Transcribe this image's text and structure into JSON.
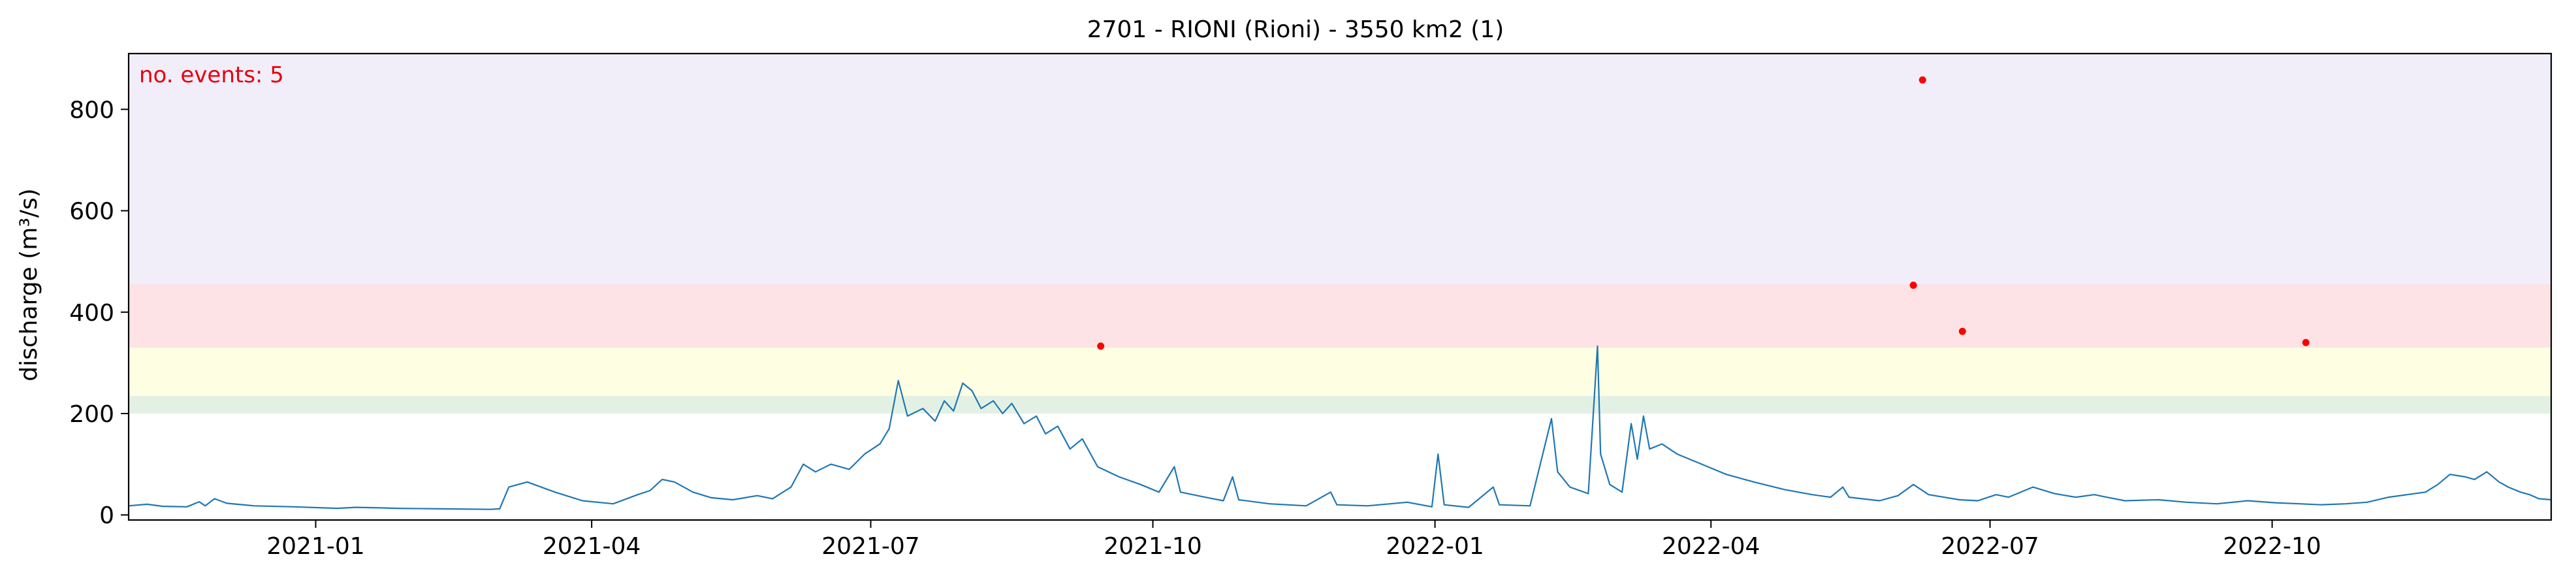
{
  "chart_data": {
    "type": "line",
    "title": "2701 - RIONI (Rioni) - 3550 km2 (1)",
    "xlabel": "",
    "ylabel": "discharge (m³/s)",
    "annotation": "no. events: 5",
    "xlim": [
      "2020-11-01",
      "2022-12-31"
    ],
    "ylim": [
      -10,
      910
    ],
    "x_ticks": [
      {
        "date": "2021-01-01",
        "label": "2021-01"
      },
      {
        "date": "2021-04-01",
        "label": "2021-04"
      },
      {
        "date": "2021-07-01",
        "label": "2021-07"
      },
      {
        "date": "2021-10-01",
        "label": "2021-10"
      },
      {
        "date": "2022-01-01",
        "label": "2022-01"
      },
      {
        "date": "2022-04-01",
        "label": "2022-04"
      },
      {
        "date": "2022-07-01",
        "label": "2022-07"
      },
      {
        "date": "2022-10-01",
        "label": "2022-10"
      }
    ],
    "y_ticks": [
      0,
      200,
      400,
      600,
      800
    ],
    "grid": false,
    "threshold_bands": [
      {
        "from": 200,
        "to": 235,
        "color": "#e3f1e4"
      },
      {
        "from": 235,
        "to": 330,
        "color": "#fefee2"
      },
      {
        "from": 330,
        "to": 455,
        "color": "#fde3e5"
      },
      {
        "from": 455,
        "to": 910,
        "color": "#f1eefa"
      }
    ],
    "series": [
      {
        "color": "#1f77b4",
        "points": [
          [
            "2020-11-01",
            18
          ],
          [
            "2020-11-07",
            21
          ],
          [
            "2020-11-12",
            17
          ],
          [
            "2020-11-20",
            16
          ],
          [
            "2020-11-24",
            26
          ],
          [
            "2020-11-26",
            18
          ],
          [
            "2020-11-29",
            32
          ],
          [
            "2020-12-03",
            23
          ],
          [
            "2020-12-12",
            18
          ],
          [
            "2020-12-25",
            16
          ],
          [
            "2021-01-08",
            13
          ],
          [
            "2021-01-14",
            15
          ],
          [
            "2021-01-22",
            14
          ],
          [
            "2021-01-27",
            13
          ],
          [
            "2021-02-11",
            12
          ],
          [
            "2021-02-27",
            11
          ],
          [
            "2021-03-02",
            12
          ],
          [
            "2021-03-05",
            55
          ],
          [
            "2021-03-11",
            65
          ],
          [
            "2021-03-20",
            45
          ],
          [
            "2021-03-29",
            28
          ],
          [
            "2021-04-08",
            22
          ],
          [
            "2021-04-16",
            40
          ],
          [
            "2021-04-20",
            48
          ],
          [
            "2021-04-24",
            70
          ],
          [
            "2021-04-28",
            65
          ],
          [
            "2021-05-04",
            45
          ],
          [
            "2021-05-10",
            34
          ],
          [
            "2021-05-17",
            30
          ],
          [
            "2021-05-25",
            38
          ],
          [
            "2021-05-30",
            32
          ],
          [
            "2021-06-05",
            55
          ],
          [
            "2021-06-09",
            100
          ],
          [
            "2021-06-13",
            85
          ],
          [
            "2021-06-18",
            100
          ],
          [
            "2021-06-24",
            90
          ],
          [
            "2021-06-29",
            120
          ],
          [
            "2021-07-04",
            140
          ],
          [
            "2021-07-07",
            170
          ],
          [
            "2021-07-10",
            265
          ],
          [
            "2021-07-13",
            195
          ],
          [
            "2021-07-18",
            210
          ],
          [
            "2021-07-22",
            185
          ],
          [
            "2021-07-25",
            225
          ],
          [
            "2021-07-28",
            205
          ],
          [
            "2021-07-31",
            260
          ],
          [
            "2021-08-03",
            245
          ],
          [
            "2021-08-06",
            210
          ],
          [
            "2021-08-10",
            225
          ],
          [
            "2021-08-13",
            200
          ],
          [
            "2021-08-16",
            220
          ],
          [
            "2021-08-20",
            180
          ],
          [
            "2021-08-24",
            195
          ],
          [
            "2021-08-27",
            160
          ],
          [
            "2021-08-31",
            175
          ],
          [
            "2021-09-04",
            130
          ],
          [
            "2021-09-08",
            150
          ],
          [
            "2021-09-13",
            95
          ],
          [
            "2021-09-20",
            75
          ],
          [
            "2021-09-27",
            60
          ],
          [
            "2021-10-03",
            45
          ],
          [
            "2021-10-08",
            95
          ],
          [
            "2021-10-10",
            45
          ],
          [
            "2021-10-18",
            35
          ],
          [
            "2021-10-24",
            28
          ],
          [
            "2021-10-27",
            75
          ],
          [
            "2021-10-29",
            30
          ],
          [
            "2021-11-08",
            22
          ],
          [
            "2021-11-20",
            18
          ],
          [
            "2021-11-28",
            45
          ],
          [
            "2021-11-30",
            20
          ],
          [
            "2021-12-10",
            18
          ],
          [
            "2021-12-23",
            25
          ],
          [
            "2021-12-31",
            16
          ],
          [
            "2022-01-02",
            120
          ],
          [
            "2022-01-04",
            20
          ],
          [
            "2022-01-12",
            15
          ],
          [
            "2022-01-20",
            55
          ],
          [
            "2022-01-22",
            20
          ],
          [
            "2022-02-01",
            18
          ],
          [
            "2022-02-08",
            190
          ],
          [
            "2022-02-10",
            85
          ],
          [
            "2022-02-14",
            55
          ],
          [
            "2022-02-20",
            42
          ],
          [
            "2022-02-23",
            333
          ],
          [
            "2022-02-24",
            120
          ],
          [
            "2022-02-27",
            60
          ],
          [
            "2022-03-03",
            45
          ],
          [
            "2022-03-06",
            180
          ],
          [
            "2022-03-08",
            110
          ],
          [
            "2022-03-10",
            195
          ],
          [
            "2022-03-12",
            130
          ],
          [
            "2022-03-16",
            140
          ],
          [
            "2022-03-21",
            120
          ],
          [
            "2022-03-25",
            110
          ],
          [
            "2022-03-31",
            95
          ],
          [
            "2022-04-06",
            80
          ],
          [
            "2022-04-15",
            65
          ],
          [
            "2022-04-25",
            50
          ],
          [
            "2022-05-04",
            40
          ],
          [
            "2022-05-10",
            35
          ],
          [
            "2022-05-14",
            55
          ],
          [
            "2022-05-16",
            35
          ],
          [
            "2022-05-26",
            28
          ],
          [
            "2022-06-01",
            38
          ],
          [
            "2022-06-06",
            60
          ],
          [
            "2022-06-11",
            40
          ],
          [
            "2022-06-21",
            30
          ],
          [
            "2022-06-27",
            28
          ],
          [
            "2022-07-03",
            40
          ],
          [
            "2022-07-07",
            35
          ],
          [
            "2022-07-15",
            55
          ],
          [
            "2022-07-22",
            42
          ],
          [
            "2022-07-29",
            35
          ],
          [
            "2022-08-04",
            40
          ],
          [
            "2022-08-08",
            35
          ],
          [
            "2022-08-14",
            28
          ],
          [
            "2022-08-25",
            30
          ],
          [
            "2022-09-03",
            25
          ],
          [
            "2022-09-13",
            22
          ],
          [
            "2022-09-23",
            28
          ],
          [
            "2022-10-02",
            24
          ],
          [
            "2022-10-10",
            22
          ],
          [
            "2022-10-17",
            20
          ],
          [
            "2022-10-25",
            22
          ],
          [
            "2022-11-01",
            25
          ],
          [
            "2022-11-08",
            35
          ],
          [
            "2022-11-14",
            40
          ],
          [
            "2022-11-20",
            45
          ],
          [
            "2022-11-24",
            60
          ],
          [
            "2022-11-28",
            80
          ],
          [
            "2022-12-03",
            75
          ],
          [
            "2022-12-06",
            70
          ],
          [
            "2022-12-10",
            85
          ],
          [
            "2022-12-14",
            65
          ],
          [
            "2022-12-17",
            55
          ],
          [
            "2022-12-21",
            45
          ],
          [
            "2022-12-24",
            40
          ],
          [
            "2022-12-27",
            32
          ],
          [
            "2022-12-31",
            30
          ]
        ]
      }
    ],
    "events": [
      {
        "date": "2021-09-14",
        "value": 333
      },
      {
        "date": "2022-06-06",
        "value": 453
      },
      {
        "date": "2022-06-09",
        "value": 858
      },
      {
        "date": "2022-06-22",
        "value": 362
      },
      {
        "date": "2022-10-12",
        "value": 340
      }
    ],
    "event_color": "#ff0000"
  }
}
